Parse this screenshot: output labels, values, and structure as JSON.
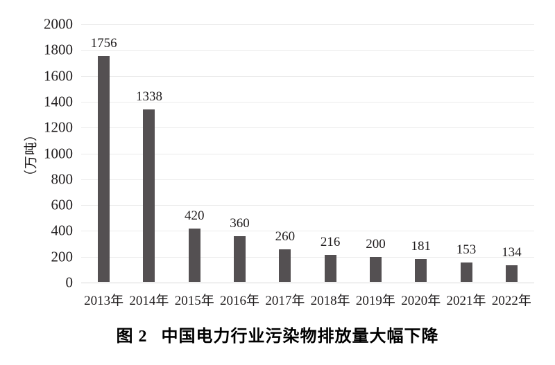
{
  "chart_data": {
    "type": "bar",
    "categories": [
      "2013年",
      "2014年",
      "2015年",
      "2016年",
      "2017年",
      "2018年",
      "2019年",
      "2020年",
      "2021年",
      "2022年"
    ],
    "values": [
      1756,
      1338,
      420,
      360,
      260,
      216,
      200,
      181,
      153,
      134
    ],
    "title": "图 2 中国电力行业污染物排放量大幅下降",
    "xlabel": "",
    "ylabel": "（万吨）",
    "ylim": [
      0,
      2000
    ],
    "ytick_step": 200,
    "grid": true,
    "legend": "none",
    "bar_color": "#545052",
    "gridline_color": "#ebebeb",
    "axisline_color": "#d8d8d8",
    "text_color": "#1f1c1d"
  },
  "caption": {
    "number": "图 2",
    "title": "中国电力行业污染物排放量大幅下降"
  }
}
